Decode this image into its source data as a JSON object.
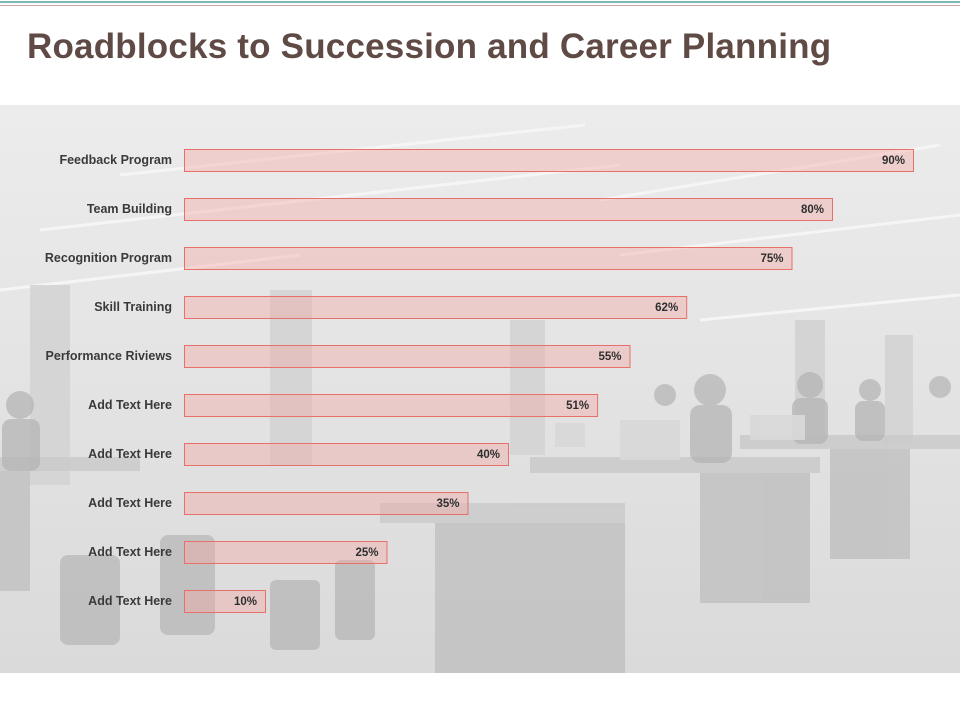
{
  "slide": {
    "title": "Roadblocks to Succession and Career Planning",
    "background_photo": "open-plan-office-photo",
    "accent_color": "#e8706a",
    "title_color": "#5f4a45"
  },
  "chart_data": {
    "type": "bar",
    "orientation": "horizontal",
    "categories": [
      "Feedback Program",
      "Team Building",
      "Recognition Program",
      "Skill Training",
      "Performance Riviews",
      "Add Text Here",
      "Add Text Here",
      "Add Text Here",
      "Add Text Here",
      "Add Text Here"
    ],
    "values": [
      90,
      80,
      75,
      62,
      55,
      51,
      40,
      35,
      25,
      10
    ],
    "value_labels": [
      "90%",
      "80%",
      "75%",
      "62%",
      "55%",
      "51%",
      "40%",
      "35%",
      "25%",
      "10%"
    ],
    "unit": "%",
    "xlim": [
      0,
      100
    ],
    "grid": false,
    "legend": "none",
    "bar_color": "#f4aaa5",
    "bar_border_color": "#e8706a"
  }
}
